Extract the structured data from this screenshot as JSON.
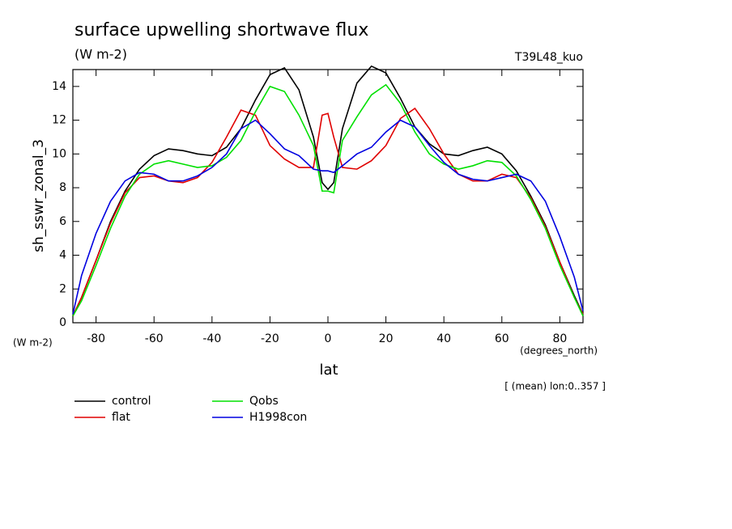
{
  "chart_data": {
    "type": "line",
    "title": "surface upwelling shortwave flux",
    "units": "(W m-2)",
    "run_label": "T39L48_kuo",
    "y_label": "sh_sswr_zonal_3",
    "y_units": "(W m-2)",
    "x_label": "lat",
    "x_units": "(degrees_north)",
    "note": "[ (mean) lon:0..357 ]",
    "x": [
      -88,
      -85,
      -80,
      -75,
      -70,
      -65,
      -60,
      -55,
      -50,
      -45,
      -40,
      -35,
      -30,
      -25,
      -20,
      -15,
      -10,
      -5,
      -2,
      0,
      2,
      5,
      10,
      15,
      20,
      25,
      30,
      35,
      40,
      45,
      50,
      55,
      60,
      65,
      70,
      75,
      80,
      85,
      88
    ],
    "series": [
      {
        "name": "control",
        "color": "#000000",
        "values": [
          0.4,
          1.5,
          3.7,
          6.0,
          7.8,
          9.1,
          9.9,
          10.3,
          10.2,
          10.0,
          9.9,
          10.4,
          11.5,
          13.2,
          14.7,
          15.1,
          13.8,
          11.0,
          8.3,
          7.9,
          8.3,
          11.5,
          14.2,
          15.2,
          14.8,
          13.3,
          11.6,
          10.6,
          10.0,
          9.9,
          10.2,
          10.4,
          10.0,
          9.0,
          7.5,
          5.8,
          3.6,
          1.6,
          0.5
        ]
      },
      {
        "name": "flat",
        "color": "#e00000",
        "values": [
          0.4,
          1.5,
          3.7,
          5.9,
          7.7,
          8.6,
          8.7,
          8.4,
          8.3,
          8.6,
          9.5,
          11.0,
          12.6,
          12.3,
          10.5,
          9.7,
          9.2,
          9.2,
          12.3,
          12.4,
          11.0,
          9.2,
          9.1,
          9.6,
          10.5,
          12.1,
          12.7,
          11.5,
          10.0,
          8.8,
          8.4,
          8.4,
          8.8,
          8.6,
          7.4,
          5.7,
          3.6,
          1.5,
          0.5
        ]
      },
      {
        "name": "Qobs",
        "color": "#00e000",
        "values": [
          0.4,
          1.3,
          3.4,
          5.6,
          7.5,
          8.8,
          9.4,
          9.6,
          9.4,
          9.2,
          9.3,
          9.8,
          10.8,
          12.5,
          14.0,
          13.7,
          12.3,
          10.5,
          7.8,
          7.8,
          7.7,
          10.8,
          12.2,
          13.5,
          14.1,
          13.0,
          11.3,
          10.0,
          9.4,
          9.1,
          9.3,
          9.6,
          9.5,
          8.7,
          7.3,
          5.6,
          3.4,
          1.5,
          0.4
        ]
      },
      {
        "name": "H1998con",
        "color": "#0000e0",
        "values": [
          0.5,
          2.8,
          5.3,
          7.2,
          8.4,
          8.9,
          8.8,
          8.4,
          8.4,
          8.7,
          9.2,
          10.0,
          11.5,
          12.0,
          11.2,
          10.3,
          9.9,
          9.1,
          9.0,
          9.0,
          8.9,
          9.3,
          10.0,
          10.4,
          11.3,
          12.0,
          11.6,
          10.5,
          9.5,
          8.8,
          8.5,
          8.4,
          8.6,
          8.8,
          8.4,
          7.2,
          5.1,
          2.7,
          0.7
        ]
      }
    ],
    "xlim": [
      -88,
      88
    ],
    "ylim": [
      0,
      15
    ],
    "xticks": [
      -80,
      -60,
      -40,
      -20,
      0,
      20,
      40,
      60,
      80
    ],
    "yticks": [
      0,
      2,
      4,
      6,
      8,
      10,
      12,
      14
    ],
    "grid": false
  }
}
